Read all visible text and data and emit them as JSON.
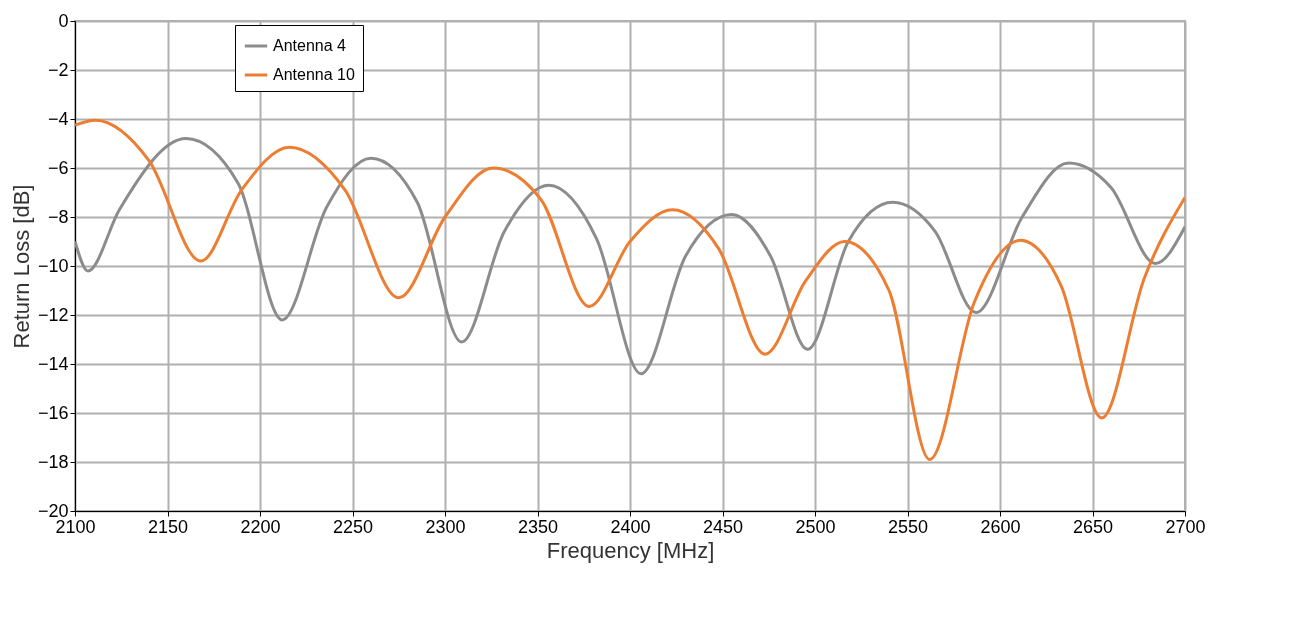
{
  "chart_data": {
    "type": "line",
    "xlabel": "Frequency [MHz]",
    "ylabel": "Return  Loss [dB]",
    "xlim": [
      2100,
      2700
    ],
    "xticks": [
      2100,
      2150,
      2200,
      2250,
      2300,
      2350,
      2400,
      2450,
      2500,
      2550,
      2600,
      2650,
      2700
    ],
    "ylim": [
      -20,
      0
    ],
    "yticks": [
      -20,
      -18,
      -16,
      -14,
      -12,
      -10,
      -8,
      -6,
      -4,
      -2,
      0
    ],
    "grid": true,
    "legend": "top left",
    "marker": "none",
    "line_style": "solid",
    "series": [
      {
        "name": "Antenna 4",
        "color": "#8c8c8c",
        "x": [
          2100,
          2107,
          2124,
          2160,
          2188,
          2212,
          2236,
          2260,
          2285,
          2309,
          2332,
          2356,
          2382,
          2406,
          2430,
          2455,
          2476,
          2496,
          2518,
          2542,
          2565,
          2587,
          2612,
          2637,
          2660,
          2684,
          2700
        ],
        "values": [
          -9.0,
          -10.2,
          -7.7,
          -4.8,
          -6.6,
          -12.2,
          -7.6,
          -5.6,
          -7.4,
          -13.1,
          -8.6,
          -6.7,
          -8.9,
          -14.4,
          -9.6,
          -7.9,
          -9.6,
          -13.4,
          -9.0,
          -7.4,
          -8.6,
          -11.9,
          -8.0,
          -5.8,
          -6.8,
          -9.9,
          -8.4
        ]
      },
      {
        "name": "Antenna 10",
        "color": "#ed7d31",
        "x": [
          2100,
          2111,
          2140,
          2168,
          2190,
          2216,
          2246,
          2275,
          2300,
          2326,
          2352,
          2378,
          2400,
          2423,
          2448,
          2473,
          2495,
          2516,
          2540,
          2562,
          2586,
          2611,
          2633,
          2655,
          2678,
          2700
        ],
        "values": [
          -4.25,
          -4.05,
          -5.7,
          -9.8,
          -6.9,
          -5.15,
          -6.9,
          -11.3,
          -8.0,
          -6.0,
          -7.3,
          -11.65,
          -9.0,
          -7.7,
          -9.3,
          -13.6,
          -10.6,
          -9.0,
          -11.0,
          -17.9,
          -11.5,
          -8.95,
          -10.8,
          -16.2,
          -10.5,
          -7.2
        ]
      }
    ]
  }
}
